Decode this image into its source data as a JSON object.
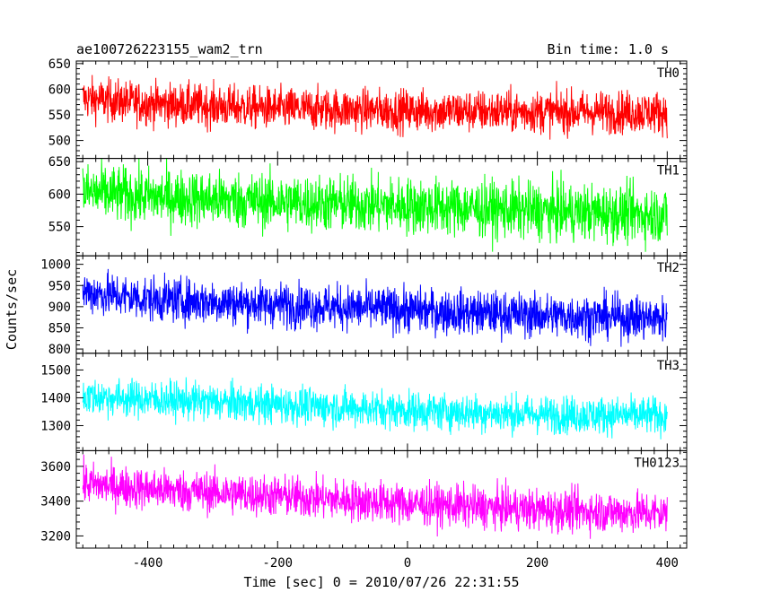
{
  "header": {
    "title": "ae100726223155_wam2_trn",
    "bin_time": "Bin time: 1.0 s"
  },
  "axes": {
    "ylabel": "Counts/sec",
    "xlabel": "Time [sec] 0 = 2010/07/26 22:31:55"
  },
  "chart_data": {
    "type": "line",
    "title": "ae100726223155_wam2_trn",
    "xlabel": "Time [sec] 0 = 2010/07/26 22:31:55",
    "ylabel": "Counts/sec",
    "xlim": [
      -510,
      430
    ],
    "xticks": [
      -400,
      -200,
      0,
      200,
      400
    ],
    "x_range": [
      -500,
      400
    ],
    "bin_time": 1.0,
    "panels": [
      {
        "name": "TH0",
        "color": "#ff0000",
        "ylim": [
          465,
          655
        ],
        "yticks": [
          500,
          550,
          600,
          650
        ],
        "trend": [
          [
            -500,
            582
          ],
          [
            -400,
            572
          ],
          [
            -200,
            562
          ],
          [
            0,
            558
          ],
          [
            200,
            556
          ],
          [
            400,
            555
          ]
        ],
        "noise": 38
      },
      {
        "name": "TH1",
        "color": "#00ff00",
        "ylim": [
          505,
          655
        ],
        "yticks": [
          550,
          600,
          650
        ],
        "trend": [
          [
            -500,
            603
          ],
          [
            -400,
            596
          ],
          [
            -200,
            588
          ],
          [
            0,
            582
          ],
          [
            200,
            574
          ],
          [
            400,
            568
          ]
        ],
        "noise": 40
      },
      {
        "name": "TH2",
        "color": "#0000ff",
        "ylim": [
          790,
          1020
        ],
        "yticks": [
          800,
          850,
          900,
          950,
          1000
        ],
        "trend": [
          [
            -500,
            935
          ],
          [
            -400,
            918
          ],
          [
            -200,
            905
          ],
          [
            0,
            892
          ],
          [
            200,
            880
          ],
          [
            400,
            872
          ]
        ],
        "noise": 48
      },
      {
        "name": "TH3",
        "color": "#00ffff",
        "ylim": [
          1210,
          1560
        ],
        "yticks": [
          1300,
          1400,
          1500
        ],
        "trend": [
          [
            -500,
            1405
          ],
          [
            -400,
            1395
          ],
          [
            -200,
            1375
          ],
          [
            0,
            1355
          ],
          [
            200,
            1340
          ],
          [
            400,
            1335
          ]
        ],
        "noise": 62
      },
      {
        "name": "TH0123",
        "color": "#ff00ff",
        "ylim": [
          3130,
          3690
        ],
        "yticks": [
          3200,
          3400,
          3600
        ],
        "trend": [
          [
            -500,
            3500
          ],
          [
            -400,
            3470
          ],
          [
            -200,
            3430
          ],
          [
            0,
            3385
          ],
          [
            200,
            3350
          ],
          [
            400,
            3330
          ]
        ],
        "noise": 110
      }
    ]
  }
}
